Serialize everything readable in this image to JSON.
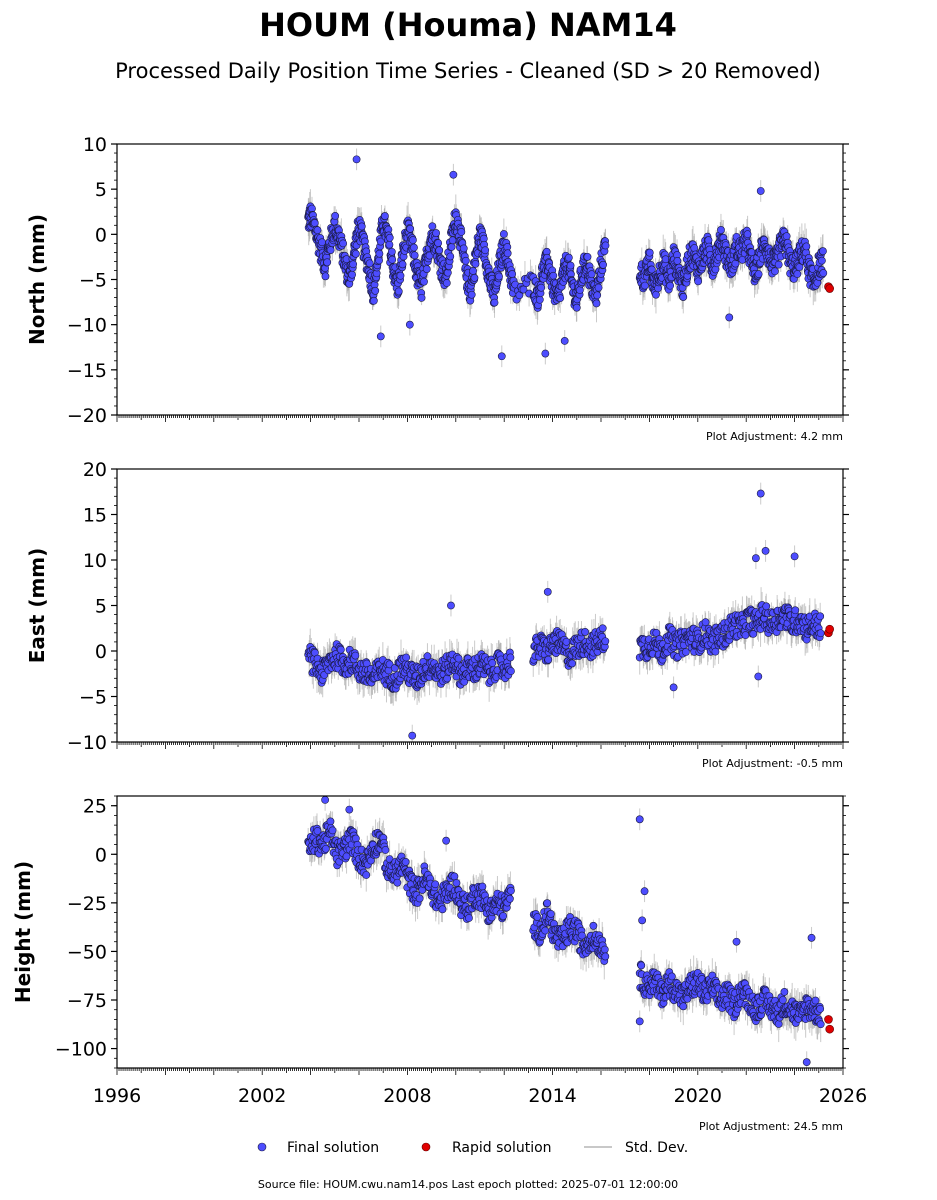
{
  "title": "HOUM (Houma) NAM14",
  "subtitle": "Processed Daily Position Time Series - Cleaned (SD > 20 Removed)",
  "footer": "Source file: HOUM.cwu.nam14.pos  Last epoch plotted: 2025-07-01 12:00:00",
  "legend": {
    "final": "Final solution",
    "rapid": "Rapid solution",
    "std": "Std. Dev."
  },
  "colors": {
    "final": "#4d4dff",
    "finalEdge": "#1a1a40",
    "rapid": "#e00000",
    "std": "#9e9e9e"
  },
  "chart_data": [
    {
      "type": "scatter",
      "ylabel": "North (mm)",
      "adjustment": "Plot Adjustment: 4.2 mm",
      "xlim": [
        1996,
        2026
      ],
      "ylim": [
        -20,
        10
      ],
      "yticks": [
        -20,
        -15,
        -10,
        -5,
        0,
        5,
        10
      ],
      "ytick_labels": [
        "−20",
        "−15",
        "−10",
        "−5",
        "0",
        "5",
        "10"
      ],
      "series": [
        {
          "kind": "final",
          "x": [
            2003.9,
            2004.0,
            2004.2,
            2004.4,
            2004.6,
            2004.8,
            2005.0,
            2005.2,
            2005.4,
            2005.6,
            2005.8,
            2006.0,
            2006.2,
            2006.4,
            2006.6,
            2006.8,
            2007.0,
            2007.2,
            2007.4,
            2007.6,
            2007.8,
            2008.0,
            2008.2,
            2008.4,
            2008.6,
            2008.8,
            2009.0,
            2009.2,
            2009.4,
            2009.6,
            2009.8,
            2010.0,
            2010.2,
            2010.4,
            2010.6,
            2010.8,
            2011.0,
            2011.2,
            2011.4,
            2011.6,
            2011.8,
            2012.0,
            2012.2,
            2012.4,
            2013.2,
            2013.4,
            2013.6,
            2013.8,
            2014.0,
            2014.2,
            2014.4,
            2014.6,
            2014.8,
            2015.0,
            2015.2,
            2015.4,
            2015.6,
            2015.8,
            2016.0,
            2016.2,
            2017.6,
            2017.8,
            2018.0,
            2018.2,
            2018.4,
            2018.6,
            2018.8,
            2019.0,
            2019.2,
            2019.4,
            2019.6,
            2019.8,
            2020.0,
            2020.2,
            2020.4,
            2020.6,
            2020.8,
            2021.0,
            2021.2,
            2021.4,
            2021.6,
            2021.8,
            2022.0,
            2022.2,
            2022.4,
            2022.6,
            2022.8,
            2023.0,
            2023.2,
            2023.4,
            2023.6,
            2023.8,
            2024.0,
            2024.2,
            2024.4,
            2024.6,
            2024.8,
            2025.0,
            2025.2
          ],
          "y": [
            1.5,
            2.0,
            0.5,
            -1.5,
            -3.5,
            -1.0,
            1.0,
            -0.5,
            -3.0,
            -5.0,
            -2.0,
            1.0,
            -1.5,
            -3.5,
            -6.5,
            -2.5,
            1.5,
            -0.5,
            -3.5,
            -6.0,
            -2.5,
            0.5,
            -1.5,
            -4.5,
            -6.0,
            -2.5,
            0.0,
            -1.0,
            -3.5,
            -5.0,
            -1.0,
            2.0,
            -0.5,
            -4.0,
            -6.5,
            -3.0,
            0.0,
            -2.0,
            -5.0,
            -7.0,
            -3.5,
            -1.0,
            -3.5,
            -6.5,
            -5.5,
            -7.0,
            -4.0,
            -3.0,
            -5.5,
            -7.5,
            -5.0,
            -3.0,
            -5.5,
            -7.5,
            -4.5,
            -3.0,
            -5.5,
            -7.0,
            -3.5,
            -1.0,
            -4.0,
            -5.0,
            -3.0,
            -6.0,
            -4.5,
            -3.0,
            -5.5,
            -2.5,
            -4.0,
            -6.0,
            -3.0,
            -2.0,
            -4.0,
            -2.5,
            -1.5,
            -3.5,
            -2.0,
            -0.5,
            -2.5,
            -3.5,
            -1.5,
            -2.0,
            -0.5,
            -3.0,
            -4.5,
            -2.0,
            -1.0,
            -3.0,
            -3.5,
            -1.5,
            -0.5,
            -3.0,
            -4.0,
            -2.5,
            -1.5,
            -4.0,
            -5.5,
            -3.5,
            -3.0
          ],
          "outliers_x": [
            2005.9,
            2009.9,
            2011.9,
            2013.7,
            2014.5,
            2022.6,
            2021.3,
            2006.9,
            2008.1
          ],
          "outliers_y": [
            8.3,
            6.6,
            -13.5,
            -13.2,
            -11.8,
            4.8,
            -9.2,
            -11.3,
            -10.0
          ]
        },
        {
          "kind": "rapid",
          "x": [
            2025.4,
            2025.45
          ],
          "y": [
            -5.8,
            -6.0
          ]
        }
      ]
    },
    {
      "type": "scatter",
      "ylabel": "East (mm)",
      "adjustment": "Plot Adjustment: -0.5 mm",
      "xlim": [
        1996,
        2026
      ],
      "ylim": [
        -10,
        20
      ],
      "yticks": [
        -10,
        -5,
        0,
        5,
        10,
        15,
        20
      ],
      "ytick_labels": [
        "−10",
        "−5",
        "0",
        "5",
        "10",
        "15",
        "20"
      ],
      "series": [
        {
          "kind": "final",
          "x": [
            2003.9,
            2004.2,
            2004.5,
            2004.8,
            2005.1,
            2005.4,
            2005.7,
            2006.0,
            2006.3,
            2006.6,
            2006.9,
            2007.2,
            2007.5,
            2007.8,
            2008.1,
            2008.4,
            2008.7,
            2009.0,
            2009.3,
            2009.6,
            2009.9,
            2010.2,
            2010.5,
            2010.8,
            2011.1,
            2011.4,
            2011.7,
            2012.0,
            2012.3,
            2013.2,
            2013.5,
            2013.8,
            2014.1,
            2014.4,
            2014.7,
            2015.0,
            2015.3,
            2015.6,
            2015.9,
            2016.2,
            2017.6,
            2017.9,
            2018.2,
            2018.5,
            2018.8,
            2019.1,
            2019.4,
            2019.7,
            2020.0,
            2020.3,
            2020.6,
            2020.9,
            2021.2,
            2021.5,
            2021.8,
            2022.1,
            2022.4,
            2022.7,
            2023.0,
            2023.3,
            2023.6,
            2023.9,
            2024.2,
            2024.5,
            2024.8,
            2025.1
          ],
          "y": [
            -0.5,
            -1.5,
            -2.5,
            -1.0,
            -0.5,
            -1.5,
            -1.0,
            -2.0,
            -2.5,
            -3.0,
            -2.0,
            -2.5,
            -3.0,
            -1.5,
            -2.5,
            -3.0,
            -2.0,
            -1.5,
            -2.5,
            -2.0,
            -1.0,
            -2.5,
            -2.0,
            -2.0,
            -1.5,
            -2.5,
            -1.5,
            -2.0,
            -1.0,
            0.0,
            0.5,
            0.0,
            1.0,
            0.5,
            -0.5,
            0.5,
            1.0,
            0.5,
            1.0,
            1.5,
            0.5,
            0.5,
            1.0,
            0.0,
            1.5,
            0.5,
            1.0,
            1.5,
            1.0,
            2.0,
            1.0,
            1.5,
            2.0,
            3.0,
            2.5,
            3.5,
            3.0,
            4.0,
            3.0,
            3.5,
            4.0,
            3.0,
            3.5,
            2.5,
            3.0,
            2.5
          ],
          "outliers_x": [
            2022.6,
            2022.8,
            2022.4,
            2024.0,
            2008.2,
            2009.8,
            2013.8,
            2022.5,
            2019.0
          ],
          "outliers_y": [
            17.3,
            11.0,
            10.2,
            10.4,
            -9.3,
            5.0,
            6.5,
            -2.8,
            -4.0
          ]
        },
        {
          "kind": "rapid",
          "x": [
            2025.4,
            2025.45
          ],
          "y": [
            2.0,
            2.4
          ]
        }
      ]
    },
    {
      "type": "scatter",
      "ylabel": "Height (mm)",
      "adjustment": "Plot Adjustment: 24.5 mm",
      "xlim": [
        1996,
        2026
      ],
      "ylim": [
        -110,
        30
      ],
      "yticks": [
        -100,
        -75,
        -50,
        -25,
        0,
        25
      ],
      "ytick_labels": [
        "−100",
        "−75",
        "−50",
        "−25",
        "0",
        "25"
      ],
      "xticks": [
        1996,
        2002,
        2008,
        2014,
        2020,
        2026
      ],
      "xtick_labels": [
        "1996",
        "2002",
        "2008",
        "2014",
        "2020",
        "2026"
      ],
      "series": [
        {
          "kind": "final",
          "x": [
            2003.9,
            2004.2,
            2004.5,
            2004.8,
            2005.1,
            2005.4,
            2005.7,
            2006.0,
            2006.3,
            2006.6,
            2006.9,
            2007.2,
            2007.5,
            2007.8,
            2008.1,
            2008.4,
            2008.7,
            2009.0,
            2009.3,
            2009.6,
            2009.9,
            2010.2,
            2010.5,
            2010.8,
            2011.1,
            2011.4,
            2011.7,
            2012.0,
            2012.3,
            2013.2,
            2013.5,
            2013.8,
            2014.1,
            2014.4,
            2014.7,
            2015.0,
            2015.3,
            2015.6,
            2015.9,
            2016.2,
            2017.6,
            2017.9,
            2018.2,
            2018.5,
            2018.8,
            2019.1,
            2019.4,
            2019.7,
            2020.0,
            2020.3,
            2020.6,
            2020.9,
            2021.2,
            2021.5,
            2021.8,
            2022.1,
            2022.4,
            2022.7,
            2023.0,
            2023.3,
            2023.6,
            2023.9,
            2024.2,
            2024.5,
            2024.8,
            2025.1
          ],
          "y": [
            2,
            8,
            5,
            12,
            0,
            3,
            8,
            -2,
            -5,
            5,
            8,
            -8,
            -10,
            -5,
            -15,
            -20,
            -12,
            -18,
            -25,
            -20,
            -15,
            -25,
            -28,
            -20,
            -22,
            -30,
            -25,
            -28,
            -20,
            -35,
            -40,
            -30,
            -42,
            -45,
            -38,
            -40,
            -48,
            -42,
            -45,
            -50,
            -62,
            -68,
            -65,
            -72,
            -66,
            -70,
            -74,
            -68,
            -66,
            -72,
            -68,
            -75,
            -72,
            -78,
            -70,
            -74,
            -80,
            -75,
            -78,
            -82,
            -76,
            -80,
            -84,
            -78,
            -80,
            -82
          ],
          "outliers_x": [
            2004.6,
            2005.6,
            2017.6,
            2017.8,
            2017.7,
            2009.6,
            2021.6,
            2024.7,
            2024.5,
            2017.6
          ],
          "outliers_y": [
            28,
            23,
            18,
            -19,
            -34,
            7,
            -45,
            -43,
            -107,
            -86
          ]
        },
        {
          "kind": "rapid",
          "x": [
            2025.4,
            2025.45
          ],
          "y": [
            -85,
            -90
          ]
        }
      ]
    }
  ]
}
